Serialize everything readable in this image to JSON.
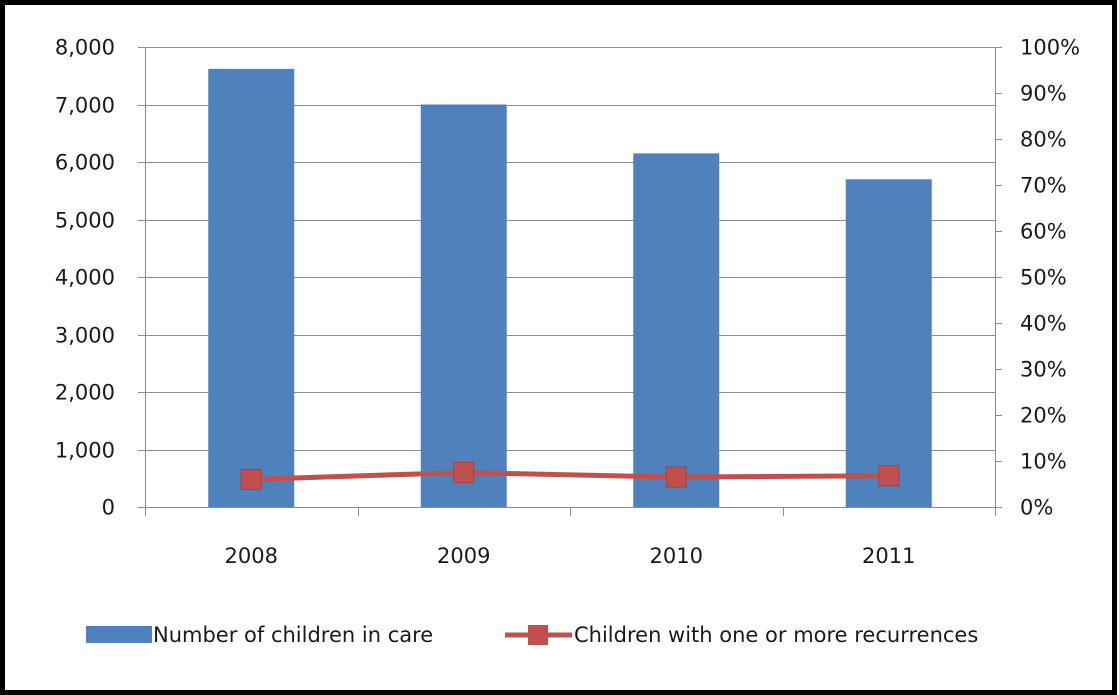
{
  "chart_data": {
    "type": "bar",
    "categories": [
      "2008",
      "2009",
      "2010",
      "2011"
    ],
    "series": [
      {
        "name": "Number of children in care",
        "type": "bar",
        "axis": "left",
        "color": "#4f81bd",
        "values": [
          7620,
          7000,
          6150,
          5700
        ]
      },
      {
        "name": "Children with one or more recurrences",
        "type": "line",
        "axis": "right",
        "color": "#c0504d",
        "values": [
          0.06,
          0.075,
          0.065,
          0.068
        ]
      }
    ],
    "y_left": {
      "min": 0,
      "max": 8000,
      "tick_labels": [
        "0",
        "1,000",
        "2,000",
        "3,000",
        "4,000",
        "5,000",
        "6,000",
        "7,000",
        "8,000"
      ]
    },
    "y_right": {
      "min": 0,
      "max": 1,
      "tick_labels": [
        "0%",
        "10%",
        "20%",
        "30%",
        "40%",
        "50%",
        "60%",
        "70%",
        "80%",
        "90%",
        "100%"
      ]
    },
    "title": "",
    "xlabel": "",
    "ylabel": "",
    "grid": true,
    "legend_position": "bottom"
  }
}
